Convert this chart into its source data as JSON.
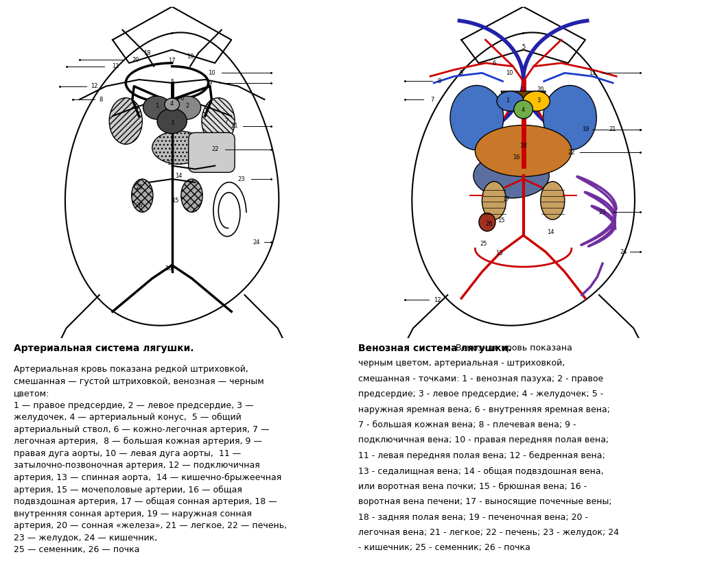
{
  "left_title_bold": "Артериальная система лягушки.",
  "left_text": "Артериальная кровь показана редкой штриховкой,\nсмешанная — густой штриховкой, венозная — черным\nцветом:\n1 — правое предсердие, 2 — левое предсердие, 3 —\nжелудочек, 4 — артериальный конус,  5 — общий\nартериальный ствол, 6 — кожно-легочная артерия, 7 —\nлегочная артерия,  8 — большая кожная артерия, 9 —\nправая дуга аорты, 10 — левая дуга аорты,  11 —\nзатылочно-позвоночная артерия, 12 — подключичная\nартерия, 13 — спинная аорта,  14 — кишечно-брыжеечная\nартерия, 15 — мочеполовые артерии, 16 — общая\nподвздошная артерия, 17 — общая сонная артерия, 18 —\nвнутренняя сонная артерия, 19 — наружная сонная\nартерия, 20 — сонная «железа», 21 — легкое, 22 — печень,\n23 — желудок, 24 — кишечник,\n25 — семенник, 26 — почка",
  "right_title_bold": "Венозная система лягушки.",
  "right_text_after_bold": " Венозная кровь показана\nчерным цветом, артериальная - штриховкой,\nсмешанная - точками: 1 - венозная пазуха; 2 - правое\nпредсердие; 3 - левое предсердие; 4 - желудочек; 5 -\nнаружная яремная вена; 6 - внутренняя яремная вена;\n7 - большая кожная вена; 8 - плечевая вена; 9 -\nподключичная вена; 10 - правая передняя полая вена;\n11 - левая передняя полая вена; 12 - бедренная вена;\n13 - седалищная вена; 14 - общая подвздошная вена,\nили воротная вена почки; 15 - брюшная вена; 16 -\nворотная вена печени; 17 - выносящие почечные вены;\n18 - задняя полая вена; 19 - печеночная вена; 20 -\nлегочная вена; 21 - легкое; 22 - печень; 23 - желудок; 24\n- кишечник; 25 - семенник; 26 - почка",
  "background_color": "#ffffff",
  "text_color": "#000000",
  "font_size_bold": 10,
  "font_size_text": 9,
  "lw_body": 1.5,
  "lw_vessel": 2.5,
  "lw_thin": 1.5
}
